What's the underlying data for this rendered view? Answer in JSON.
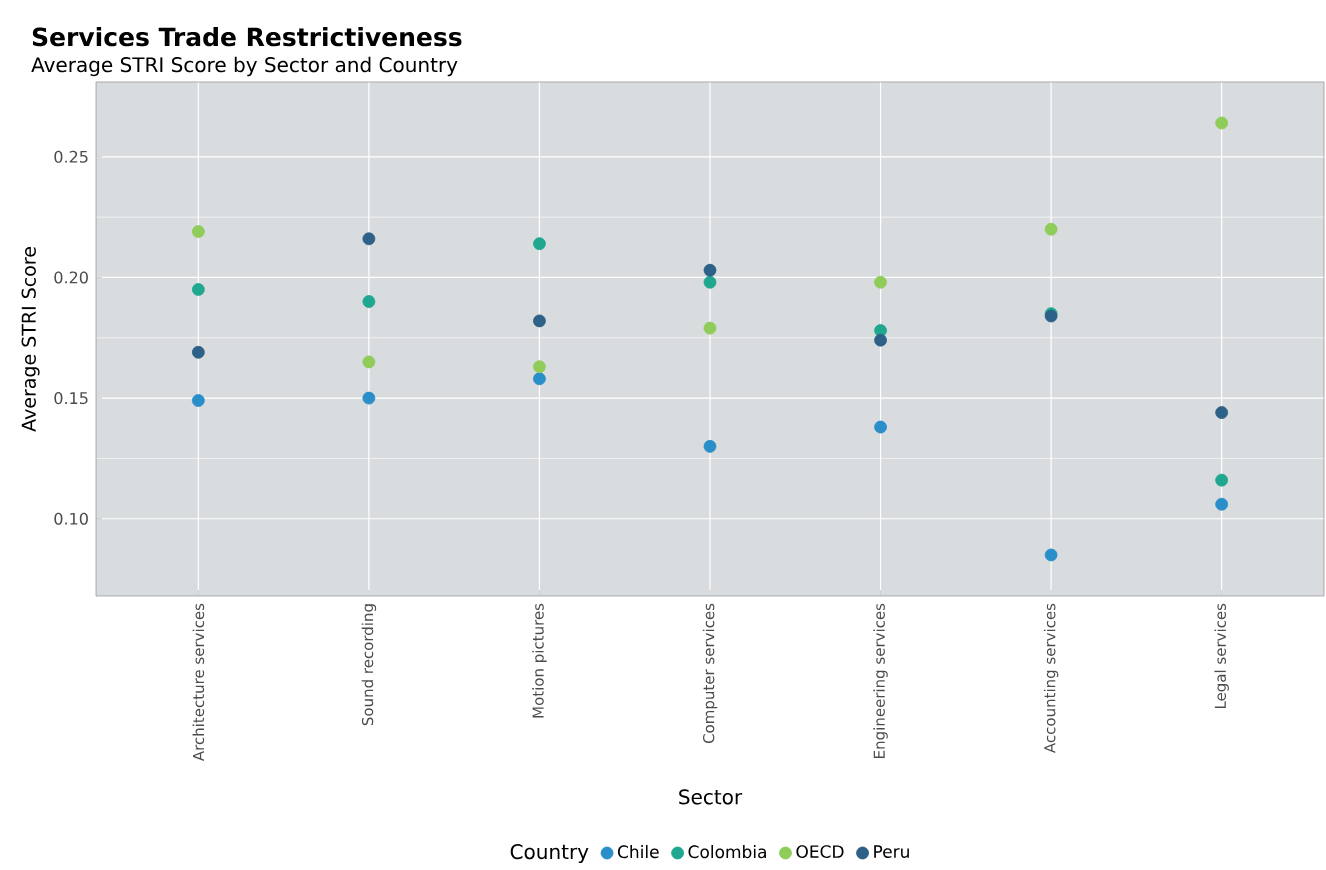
{
  "chart_data": {
    "type": "scatter",
    "title": "Services Trade Restrictiveness",
    "subtitle": "Average STRI Score by Sector and Country",
    "xlabel": "Sector",
    "ylabel": "Average STRI Score",
    "legend_title": "Country",
    "categories": [
      "Architecture services",
      "Sound recording",
      "Motion pictures",
      "Computer services",
      "Engineering services",
      "Accounting services",
      "Legal services"
    ],
    "series": [
      {
        "name": "Chile",
        "color": "#2a8fc9",
        "values": [
          0.149,
          0.15,
          0.158,
          0.13,
          0.138,
          0.085,
          0.106
        ]
      },
      {
        "name": "Colombia",
        "color": "#1fa88f",
        "values": [
          0.195,
          0.19,
          0.214,
          0.198,
          0.178,
          0.185,
          0.116
        ]
      },
      {
        "name": "OECD",
        "color": "#8fcc5a",
        "values": [
          0.219,
          0.165,
          0.163,
          0.179,
          0.198,
          0.22,
          0.264
        ]
      },
      {
        "name": "Peru",
        "color": "#2e6187",
        "values": [
          0.169,
          0.216,
          0.182,
          0.203,
          0.174,
          0.184,
          0.144
        ]
      }
    ],
    "ylim": [
      0.068,
      0.281
    ],
    "yticks": [
      {
        "value": 0.1,
        "label": "0.10"
      },
      {
        "value": 0.15,
        "label": "0.15"
      },
      {
        "value": 0.2,
        "label": "0.20"
      },
      {
        "value": 0.25,
        "label": "0.25"
      }
    ],
    "grid": true,
    "legend": "bottom",
    "marker": "circle"
  }
}
